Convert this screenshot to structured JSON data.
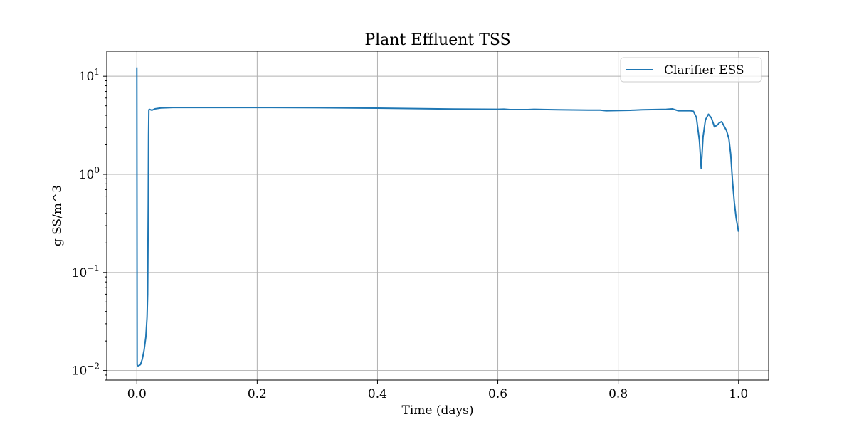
{
  "chart_data": {
    "type": "line",
    "title": "Plant Effluent TSS",
    "xlabel": "Time (days)",
    "ylabel": "g SS/m^3",
    "yscale": "log",
    "xlim": [
      -0.05,
      1.05
    ],
    "ylim": [
      0.008,
      18
    ],
    "grid": true,
    "legend_position": "top-right",
    "x_ticks": [
      0.0,
      0.2,
      0.4,
      0.6,
      0.8,
      1.0
    ],
    "x_tick_labels": [
      "0.0",
      "0.2",
      "0.4",
      "0.6",
      "0.8",
      "1.0"
    ],
    "y_ticks": [
      0.01,
      0.1,
      1,
      10
    ],
    "y_tick_labels": [
      {
        "base": "10",
        "exp": "−2"
      },
      {
        "base": "10",
        "exp": "−1"
      },
      {
        "base": "10",
        "exp": "0"
      },
      {
        "base": "10",
        "exp": "1"
      }
    ],
    "series": [
      {
        "name": "Clarifier ESS",
        "color": "#1f77b4",
        "x": [
          0.0,
          0.0005,
          0.001,
          0.003,
          0.006,
          0.009,
          0.012,
          0.015,
          0.017,
          0.018,
          0.019,
          0.0195,
          0.02,
          0.021,
          0.025,
          0.03,
          0.04,
          0.06,
          0.1,
          0.2,
          0.3,
          0.4,
          0.5,
          0.55,
          0.6,
          0.61,
          0.62,
          0.65,
          0.66,
          0.7,
          0.75,
          0.77,
          0.78,
          0.82,
          0.84,
          0.88,
          0.89,
          0.9,
          0.92,
          0.925,
          0.93,
          0.935,
          0.938,
          0.941,
          0.945,
          0.95,
          0.955,
          0.96,
          0.965,
          0.968,
          0.972,
          0.976,
          0.98,
          0.984,
          0.987,
          0.99,
          0.993,
          0.996,
          1.0
        ],
        "y": [
          12.3,
          0.0115,
          0.0112,
          0.0112,
          0.0115,
          0.013,
          0.016,
          0.022,
          0.035,
          0.06,
          0.5,
          2.5,
          4.55,
          4.6,
          4.5,
          4.65,
          4.75,
          4.8,
          4.8,
          4.8,
          4.78,
          4.73,
          4.65,
          4.62,
          4.6,
          4.62,
          4.57,
          4.57,
          4.6,
          4.55,
          4.52,
          4.52,
          4.45,
          4.5,
          4.55,
          4.6,
          4.65,
          4.45,
          4.45,
          4.4,
          3.8,
          2.2,
          1.15,
          2.4,
          3.6,
          4.1,
          3.75,
          3.05,
          3.2,
          3.35,
          3.45,
          3.1,
          2.8,
          2.3,
          1.6,
          0.85,
          0.52,
          0.36,
          0.26
        ]
      }
    ]
  }
}
